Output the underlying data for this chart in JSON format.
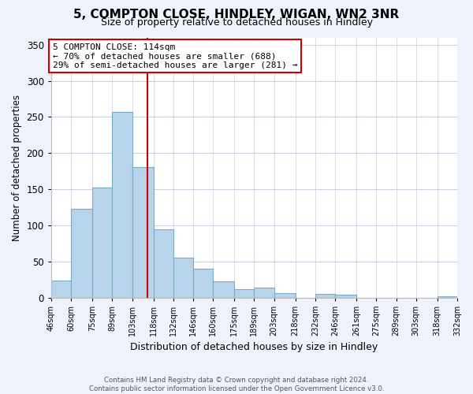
{
  "title": "5, COMPTON CLOSE, HINDLEY, WIGAN, WN2 3NR",
  "subtitle": "Size of property relative to detached houses in Hindley",
  "xlabel": "Distribution of detached houses by size in Hindley",
  "ylabel": "Number of detached properties",
  "bar_edges": [
    46,
    60,
    75,
    89,
    103,
    118,
    132,
    146,
    160,
    175,
    189,
    203,
    218,
    232,
    246,
    261,
    275,
    289,
    303,
    318,
    332
  ],
  "bar_heights": [
    24,
    123,
    152,
    257,
    181,
    95,
    55,
    40,
    22,
    12,
    14,
    6,
    0,
    5,
    4,
    0,
    0,
    0,
    0,
    2
  ],
  "bar_color": "#b8d4ea",
  "bar_edge_color": "#7aaac8",
  "vline_x": 114,
  "vline_color": "#cc0000",
  "annotation_line1": "5 COMPTON CLOSE: 114sqm",
  "annotation_line2": "← 70% of detached houses are smaller (688)",
  "annotation_line3": "29% of semi-detached houses are larger (281) →",
  "ylim": [
    0,
    360
  ],
  "yticks": [
    0,
    50,
    100,
    150,
    200,
    250,
    300,
    350
  ],
  "xtick_labels": [
    "46sqm",
    "60sqm",
    "75sqm",
    "89sqm",
    "103sqm",
    "118sqm",
    "132sqm",
    "146sqm",
    "160sqm",
    "175sqm",
    "189sqm",
    "203sqm",
    "218sqm",
    "232sqm",
    "246sqm",
    "261sqm",
    "275sqm",
    "289sqm",
    "303sqm",
    "318sqm",
    "332sqm"
  ],
  "footer_text": "Contains HM Land Registry data © Crown copyright and database right 2024.\nContains public sector information licensed under the Open Government Licence v3.0.",
  "bg_color": "#eef2fb",
  "plot_bg_color": "#ffffff",
  "grid_color": "#c8d0e0",
  "box_color": "#cc0000",
  "title_fontsize": 11,
  "subtitle_fontsize": 9
}
